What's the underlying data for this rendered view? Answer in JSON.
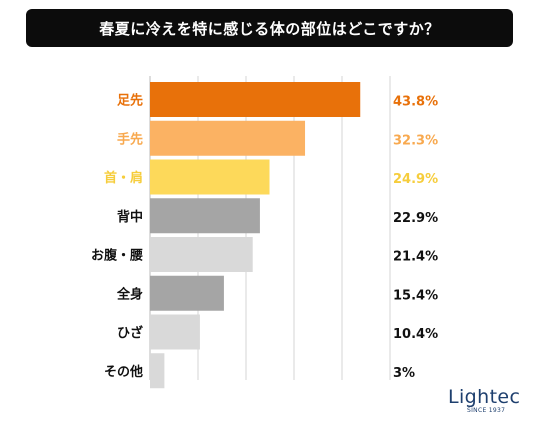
{
  "header": {
    "title": "春夏に冷えを特に感じる体の部位はどこですか？"
  },
  "brand": {
    "name": "Lightec",
    "tagline": "SINCE 1937"
  },
  "chart_data": {
    "type": "bar",
    "orientation": "horizontal",
    "title": "春夏に冷えを特に感じる体の部位はどこですか？",
    "categories": [
      "足先",
      "手先",
      "首・肩",
      "背中",
      "お腹・腰",
      "全身",
      "ひざ",
      "その他"
    ],
    "values": [
      43.8,
      32.3,
      24.9,
      22.9,
      21.4,
      15.4,
      10.4,
      3
    ],
    "value_labels": [
      "43.8%",
      "32.3%",
      "24.9%",
      "22.9%",
      "21.4%",
      "15.4%",
      "10.4%",
      "3%"
    ],
    "bar_colors": [
      "#e8710a",
      "#fbb263",
      "#fdd95a",
      "#a5a5a5",
      "#d9d9d9",
      "#a5a5a5",
      "#d9d9d9",
      "#d9d9d9"
    ],
    "label_colors": [
      "#e8710a",
      "#f8a94f",
      "#f6cd3c",
      "#111111",
      "#111111",
      "#111111",
      "#111111",
      "#111111"
    ],
    "xlim": [
      0,
      45
    ],
    "grid": true,
    "legend": "none"
  }
}
